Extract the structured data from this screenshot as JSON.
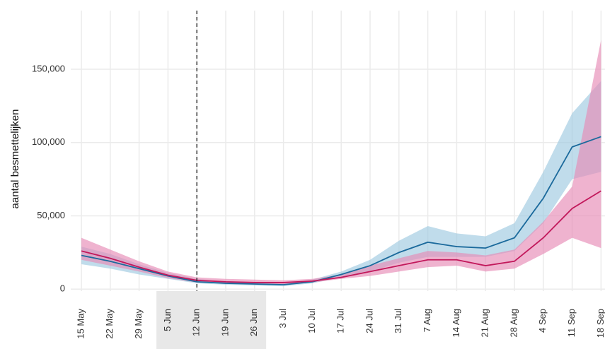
{
  "chart_data": {
    "type": "line-band",
    "y_label": "aantal besmettelijken",
    "categories": [
      "15 May",
      "22 May",
      "29 May",
      "5 Jun",
      "12 Jun",
      "19 Jun",
      "26 Jun",
      "3 Jul",
      "10 Jul",
      "17 Jul",
      "24 Jul",
      "31 Jul",
      "7 Aug",
      "14 Aug",
      "21 Aug",
      "28 Aug",
      "4 Sep",
      "11 Sep",
      "18 Sep"
    ],
    "series": [
      {
        "color": "#1b6a9c",
        "band_color": "#9ecae1",
        "values": [
          23000,
          19000,
          14000,
          9000,
          5000,
          4000,
          3500,
          3000,
          5000,
          10000,
          16000,
          25000,
          32000,
          29000,
          28000,
          35000,
          62000,
          97000,
          104000
        ],
        "lower": [
          17000,
          14000,
          10000,
          7000,
          4000,
          3000,
          2500,
          2000,
          4000,
          8000,
          12000,
          18000,
          22000,
          22000,
          22000,
          26000,
          45000,
          75000,
          80000
        ],
        "upper": [
          29000,
          24000,
          17000,
          11000,
          7000,
          5000,
          4500,
          4000,
          6500,
          12000,
          20000,
          33000,
          43000,
          38000,
          36000,
          45000,
          80000,
          120000,
          142000
        ]
      },
      {
        "color": "#c2185b",
        "band_color": "#e78ab5",
        "values": [
          26000,
          21000,
          15000,
          9500,
          6000,
          5000,
          4500,
          4500,
          5500,
          8000,
          12000,
          16000,
          20000,
          20000,
          16000,
          19000,
          35000,
          55000,
          67000
        ],
        "lower": [
          20000,
          16000,
          12000,
          7500,
          4500,
          4000,
          3500,
          3500,
          4500,
          7000,
          9000,
          12000,
          15000,
          16000,
          12000,
          14000,
          24000,
          35000,
          28000
        ],
        "upper": [
          35000,
          27000,
          19000,
          12000,
          8000,
          7000,
          6500,
          6000,
          7000,
          10000,
          16000,
          21000,
          26000,
          25000,
          23000,
          27000,
          46000,
          70000,
          170000
        ]
      }
    ],
    "ylim": [
      -10000,
      190000
    ],
    "yticks": [
      0,
      {
        "value": 50000,
        "label": "50,000"
      },
      {
        "value": 100000,
        "label": "100,000"
      },
      {
        "value": 150000,
        "label": "150,000"
      }
    ],
    "grid": true,
    "vline": "12 Jun",
    "shaded": [
      "5 Jun",
      "26 Jun"
    ]
  }
}
